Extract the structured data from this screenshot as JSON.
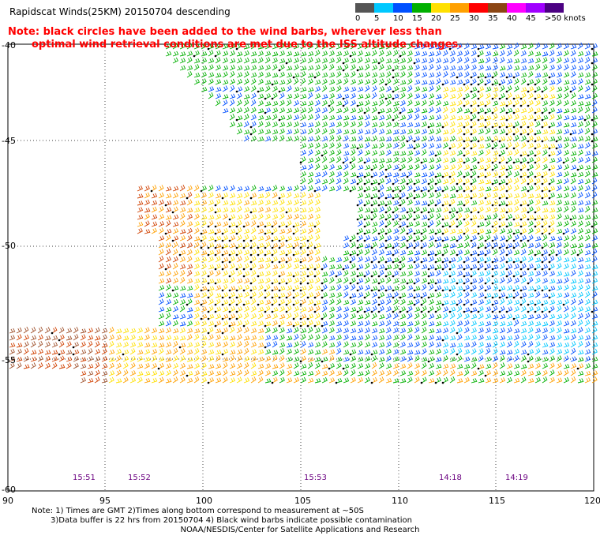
{
  "title": "Rapidscat Winds(25KM) 20150704 descending",
  "note": {
    "line1": "Note: black circles have been added to the wind barbs, wherever less than",
    "line2": "optimal wind retrieval conditions are met due to the ISS altitude changes."
  },
  "color_scale": {
    "labels": [
      "0",
      "5",
      "10",
      "15",
      "20",
      "25",
      "30",
      "35",
      "40",
      "45",
      ">50 knots"
    ],
    "colors": [
      "#555555",
      "#00c8ff",
      "#0050ff",
      "#00b000",
      "#ffe000",
      "#ffa000",
      "#ff0000",
      "#8b4513",
      "#ff00ff",
      "#a000ff",
      "#4b0082"
    ]
  },
  "map": {
    "lat_labels": [
      "-40",
      "-45",
      "-50",
      "-55",
      "-60"
    ],
    "lon_labels": [
      "90",
      "95",
      "100",
      "105",
      "110",
      "115",
      "120"
    ],
    "time_labels": [
      "15:51",
      "15:52",
      "15:53",
      "14:18",
      "14:19"
    ]
  },
  "footer": {
    "line1": "Note: 1) Times are GMT 2)Times along bottom correspond to measurement at ~50S",
    "line2": "3)Data buffer is 22 hrs from 20150704 4) Black wind barbs indicate possible contamination",
    "line3": "NOAA/NESDIS/Center for Satellite Applications and Research"
  }
}
